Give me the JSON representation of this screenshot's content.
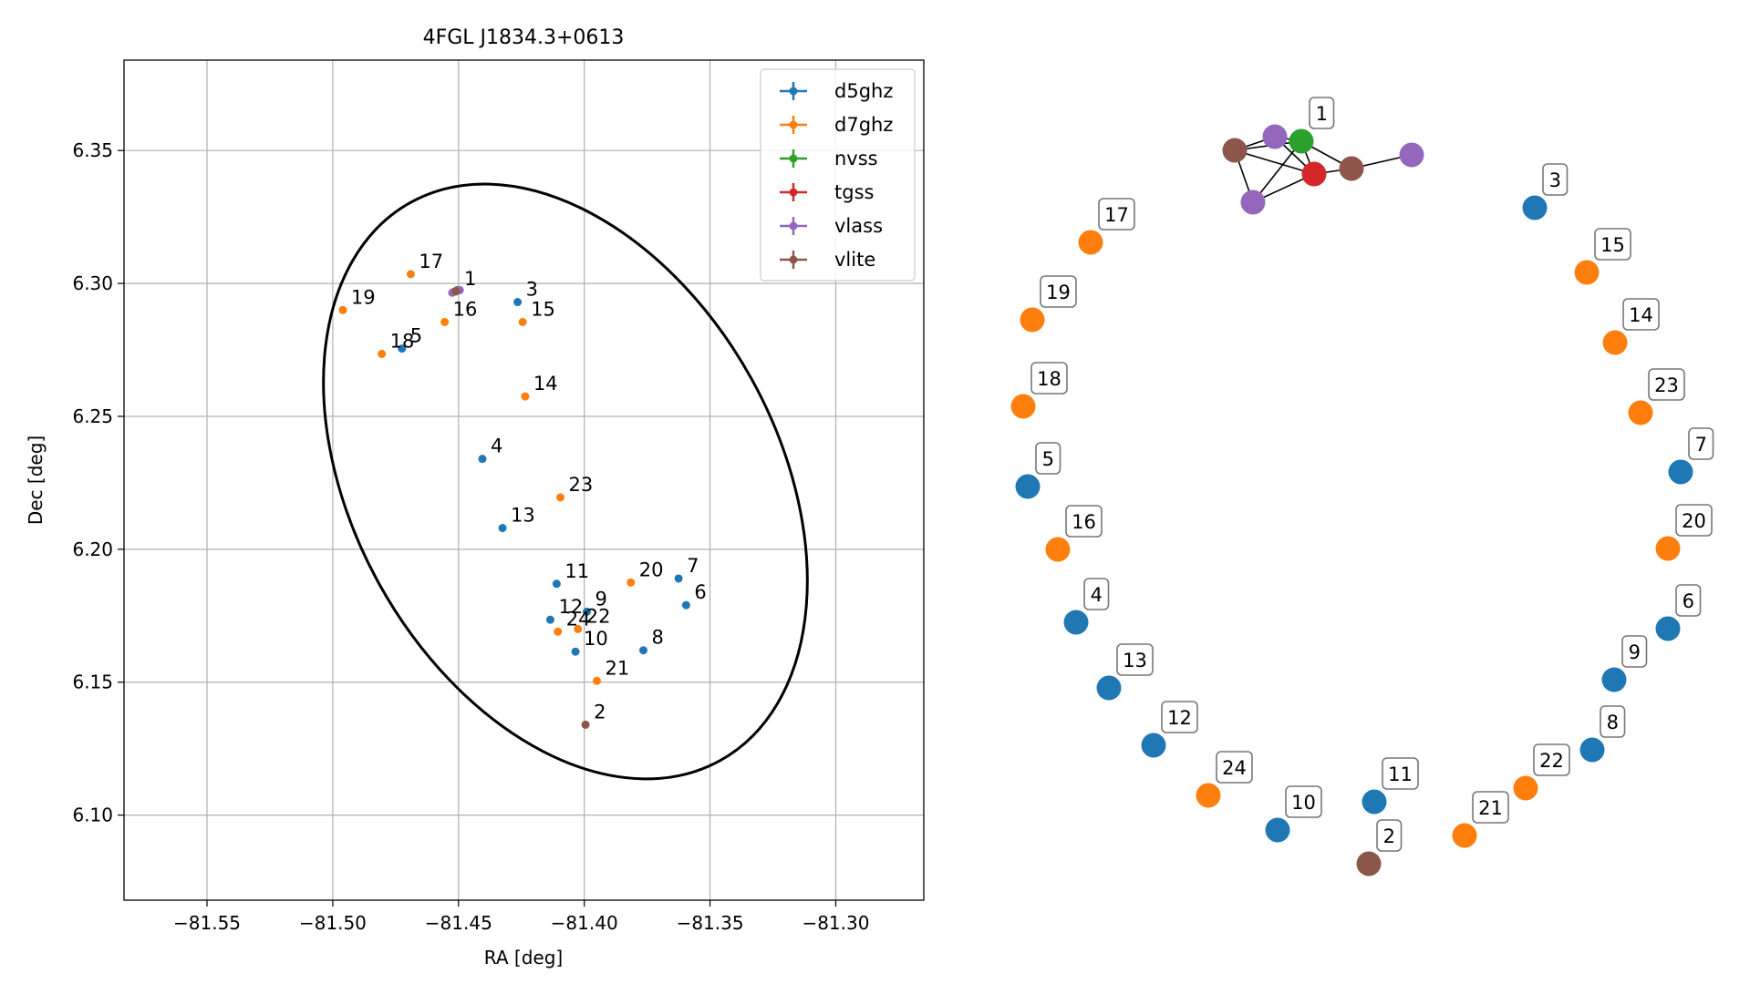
{
  "chart_data": [
    {
      "type": "scatter",
      "title": "4FGL J1834.3+0613",
      "xlabel": "RA [deg]",
      "ylabel": "Dec [deg]",
      "xlim": [
        -81.583,
        -81.265
      ],
      "ylim": [
        6.068,
        6.384
      ],
      "x_ticks": [
        -81.55,
        -81.5,
        -81.45,
        -81.4,
        -81.35,
        -81.3
      ],
      "x_tick_labels": [
        "−81.55",
        "−81.50",
        "−81.45",
        "−81.40",
        "−81.35",
        "−81.30"
      ],
      "y_ticks": [
        6.1,
        6.15,
        6.2,
        6.25,
        6.3,
        6.35
      ],
      "y_tick_labels": [
        "6.10",
        "6.15",
        "6.20",
        "6.25",
        "6.30",
        "6.35"
      ],
      "grid": true,
      "legend_position": "top-right",
      "error_ellipse": {
        "center": [
          -81.4075,
          6.2255
        ],
        "semi_axes": [
          0.0805,
          0.096
        ],
        "angle_deg": 29,
        "color": "#000000"
      },
      "series": [
        {
          "name": "d5ghz",
          "color": "#1f77b4",
          "points": [
            {
              "label": "3",
              "x": -81.4265,
              "y": 6.293
            },
            {
              "label": "5",
              "x": -81.4725,
              "y": 6.2755
            },
            {
              "label": "4",
              "x": -81.4405,
              "y": 6.234
            },
            {
              "label": "13",
              "x": -81.4325,
              "y": 6.208
            },
            {
              "label": "11",
              "x": -81.411,
              "y": 6.187
            },
            {
              "label": "7",
              "x": -81.3625,
              "y": 6.189
            },
            {
              "label": "6",
              "x": -81.3595,
              "y": 6.179
            },
            {
              "label": "9",
              "x": -81.399,
              "y": 6.1765
            },
            {
              "label": "12",
              "x": -81.4135,
              "y": 6.1735
            },
            {
              "label": "8",
              "x": -81.3765,
              "y": 6.162
            },
            {
              "label": "10",
              "x": -81.4035,
              "y": 6.1615
            }
          ]
        },
        {
          "name": "d7ghz",
          "color": "#ff7f0e",
          "points": [
            {
              "label": "17",
              "x": -81.469,
              "y": 6.3035
            },
            {
              "label": "19",
              "x": -81.496,
              "y": 6.29
            },
            {
              "label": "16",
              "x": -81.4555,
              "y": 6.2855
            },
            {
              "label": "15",
              "x": -81.4245,
              "y": 6.2855
            },
            {
              "label": "18",
              "x": -81.4805,
              "y": 6.2735
            },
            {
              "label": "14",
              "x": -81.4235,
              "y": 6.2575
            },
            {
              "label": "23",
              "x": -81.4095,
              "y": 6.2195
            },
            {
              "label": "20",
              "x": -81.3815,
              "y": 6.1875
            },
            {
              "label": "22",
              "x": -81.4025,
              "y": 6.17
            },
            {
              "label": "24",
              "x": -81.4105,
              "y": 6.169
            },
            {
              "label": "21",
              "x": -81.395,
              "y": 6.1505
            }
          ]
        },
        {
          "name": "nvss",
          "color": "#2ca02c",
          "points": [
            {
              "label": "",
              "x": -81.4505,
              "y": 6.2975
            }
          ]
        },
        {
          "name": "tgss",
          "color": "#d62728",
          "points": [
            {
              "label": "",
              "x": -81.4515,
              "y": 6.297
            }
          ]
        },
        {
          "name": "vlass",
          "color": "#9467bd",
          "points": [
            {
              "label": "",
              "x": -81.4495,
              "y": 6.2975
            },
            {
              "label": "",
              "x": -81.4525,
              "y": 6.2965
            }
          ]
        },
        {
          "name": "vlite",
          "color": "#8c564b",
          "points": [
            {
              "label": "1",
              "x": -81.451,
              "y": 6.297
            },
            {
              "label": "2",
              "x": -81.3995,
              "y": 6.134
            }
          ]
        }
      ],
      "legend": [
        "d5ghz",
        "d7ghz",
        "nvss",
        "tgss",
        "vlass",
        "vlite"
      ]
    },
    {
      "type": "network",
      "title": "",
      "node_colors": {
        "d5ghz": "#1f77b4",
        "d7ghz": "#ff7f0e",
        "nvss": "#2ca02c",
        "tgss": "#d62728",
        "vlass": "#9467bd",
        "vlite": "#8c564b"
      },
      "nodes": [
        {
          "label": "1",
          "source": "nvss"
        },
        {
          "label": "",
          "source": "tgss"
        },
        {
          "label": "",
          "source": "vlass"
        },
        {
          "label": "",
          "source": "vlass"
        },
        {
          "label": "",
          "source": "vlass"
        },
        {
          "label": "",
          "source": "vlite"
        },
        {
          "label": "",
          "source": "vlite"
        },
        {
          "label": "3",
          "source": "d5ghz"
        },
        {
          "label": "15",
          "source": "d7ghz"
        },
        {
          "label": "14",
          "source": "d7ghz"
        },
        {
          "label": "23",
          "source": "d7ghz"
        },
        {
          "label": "7",
          "source": "d5ghz"
        },
        {
          "label": "20",
          "source": "d7ghz"
        },
        {
          "label": "6",
          "source": "d5ghz"
        },
        {
          "label": "9",
          "source": "d5ghz"
        },
        {
          "label": "8",
          "source": "d5ghz"
        },
        {
          "label": "22",
          "source": "d7ghz"
        },
        {
          "label": "21",
          "source": "d7ghz"
        },
        {
          "label": "11",
          "source": "d5ghz"
        },
        {
          "label": "2",
          "source": "vlite"
        },
        {
          "label": "10",
          "source": "d5ghz"
        },
        {
          "label": "24",
          "source": "d7ghz"
        },
        {
          "label": "12",
          "source": "d5ghz"
        },
        {
          "label": "13",
          "source": "d5ghz"
        },
        {
          "label": "4",
          "source": "d5ghz"
        },
        {
          "label": "16",
          "source": "d7ghz"
        },
        {
          "label": "5",
          "source": "d5ghz"
        },
        {
          "label": "18",
          "source": "d7ghz"
        },
        {
          "label": "19",
          "source": "d7ghz"
        },
        {
          "label": "17",
          "source": "d7ghz"
        }
      ],
      "edges": [
        [
          5,
          2
        ],
        [
          5,
          0
        ],
        [
          5,
          1
        ],
        [
          5,
          3
        ],
        [
          2,
          0
        ],
        [
          2,
          1
        ],
        [
          0,
          1
        ],
        [
          0,
          6
        ],
        [
          0,
          3
        ],
        [
          1,
          6
        ],
        [
          1,
          3
        ],
        [
          6,
          4
        ]
      ]
    }
  ]
}
